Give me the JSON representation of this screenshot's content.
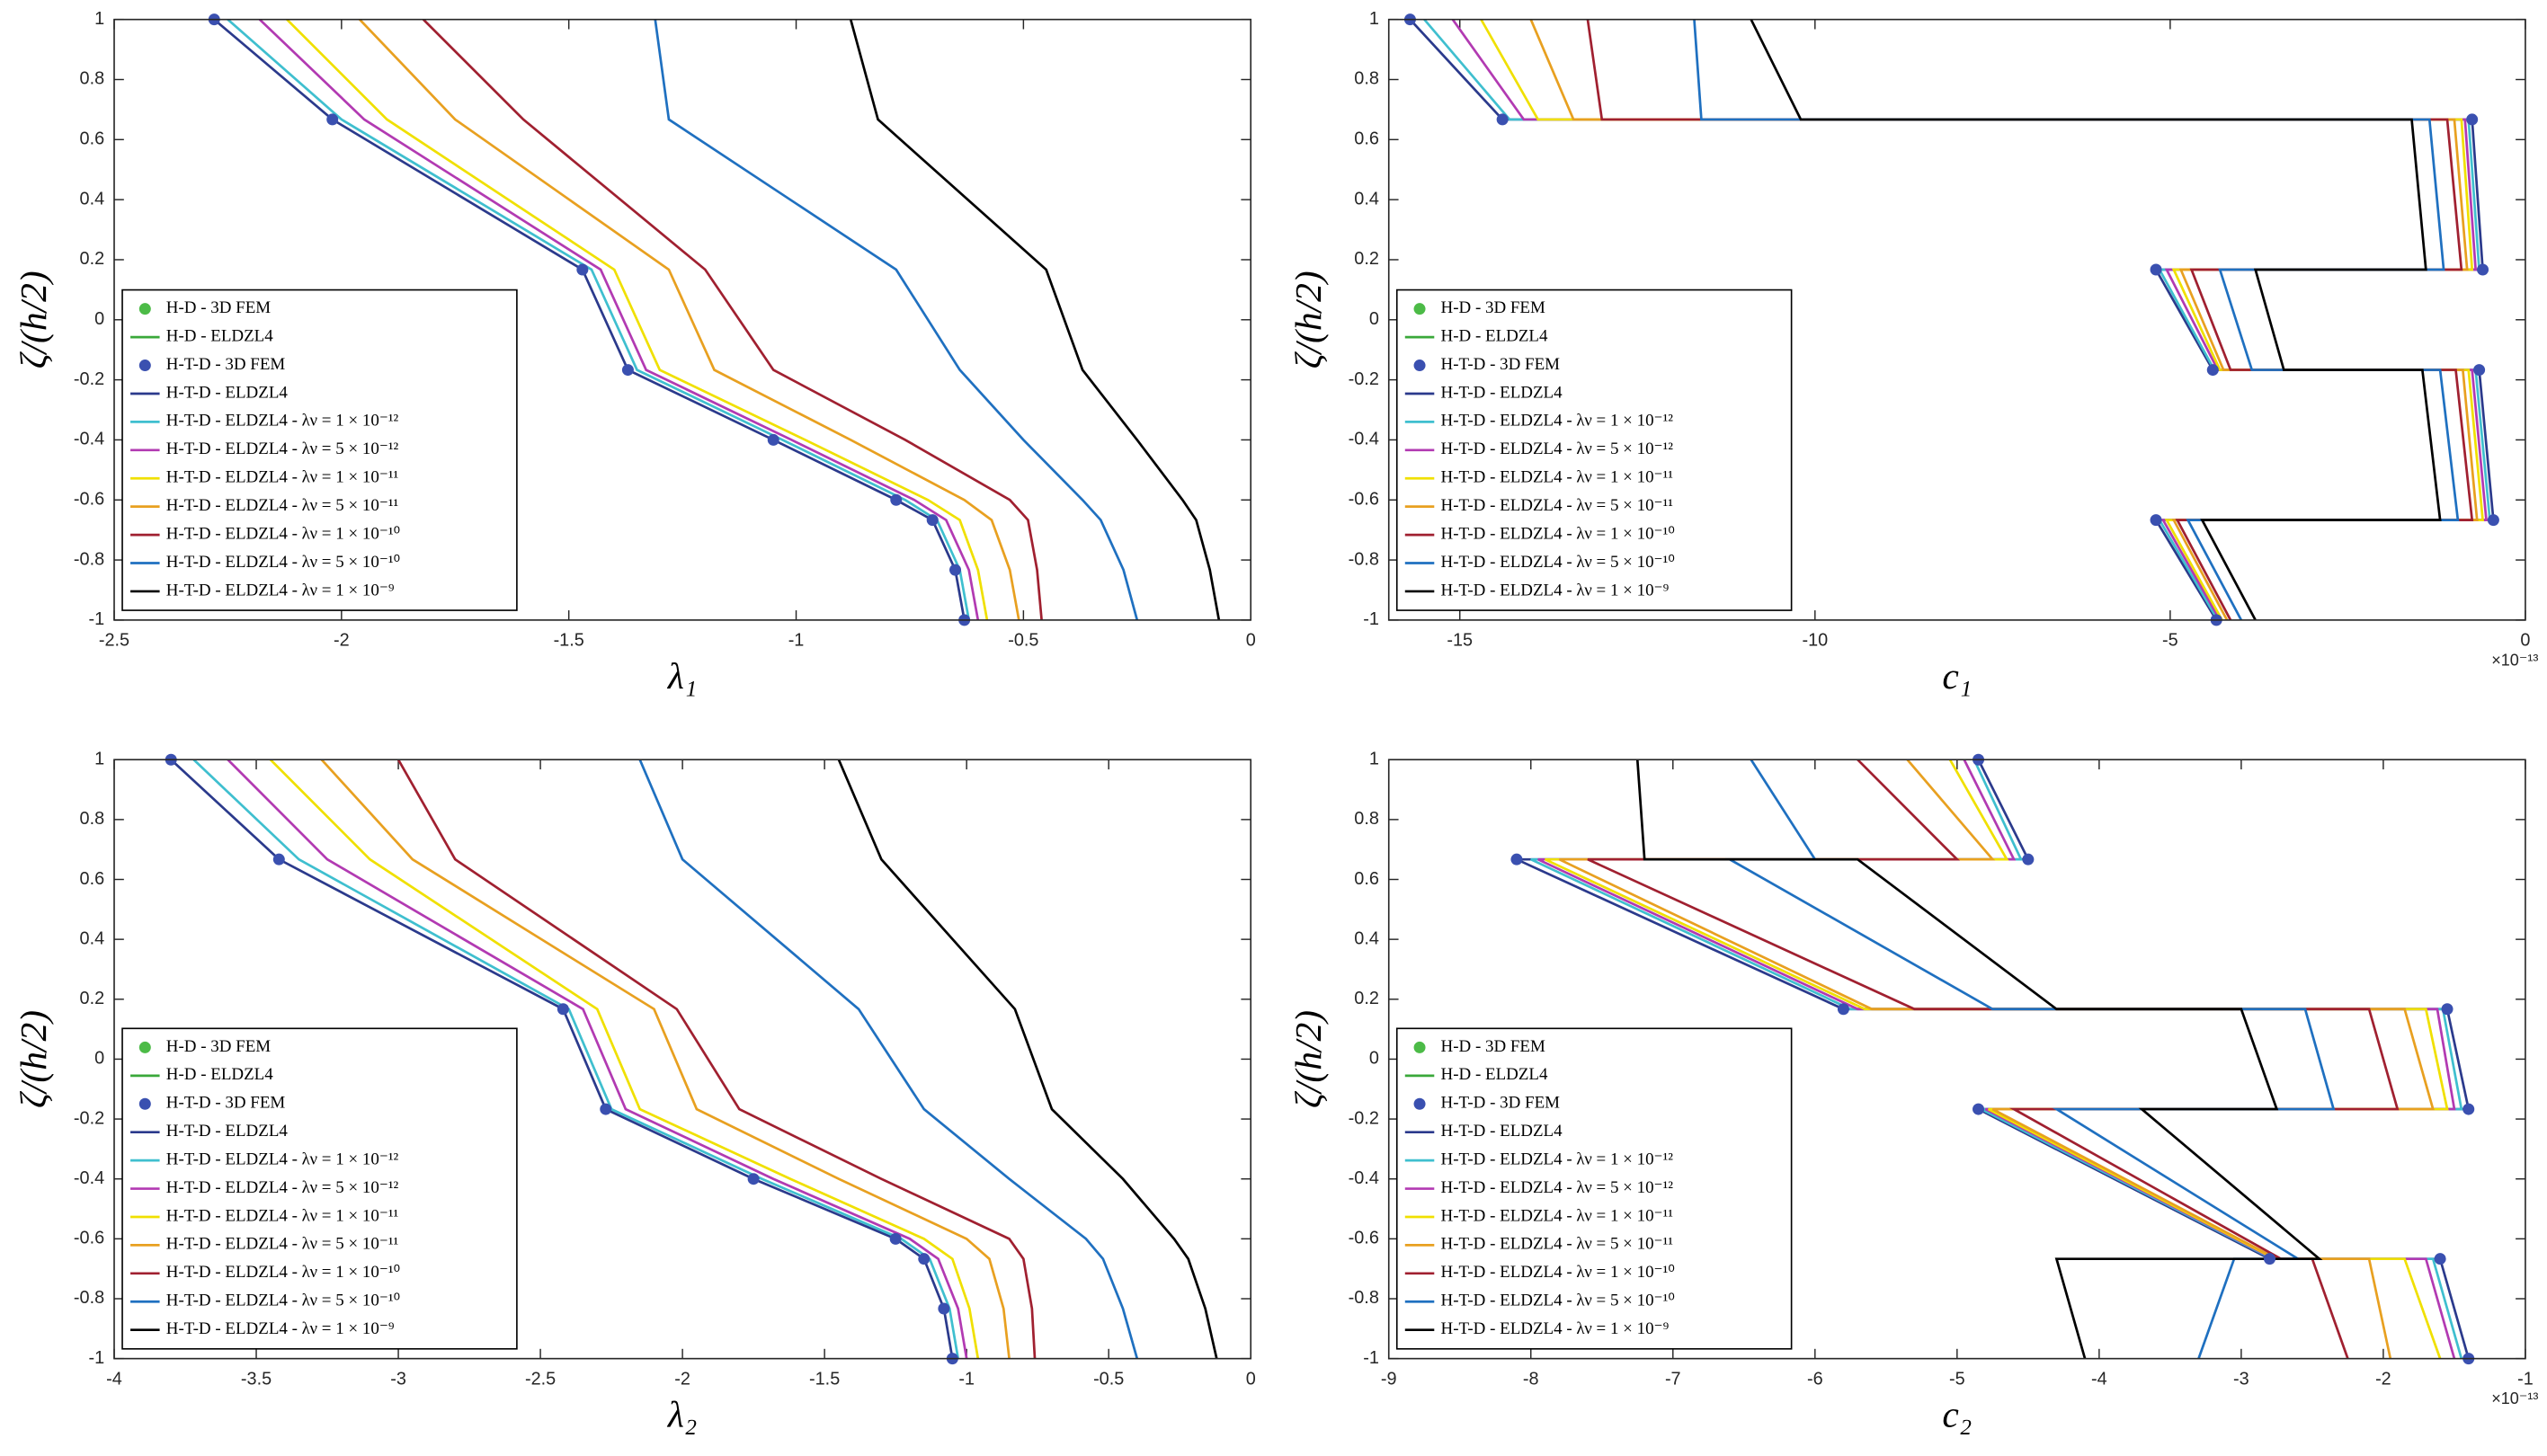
{
  "chart_data": [
    {
      "type": "line",
      "xlabel": "λ₁",
      "ylabel": "ζ/(h/2)",
      "xlim": [
        -2.5,
        0
      ],
      "ylim": [
        -1,
        1
      ],
      "xticks": [
        -2.5,
        -2,
        -1.5,
        -1,
        -0.5,
        0
      ],
      "yticks": [
        -1,
        -0.8,
        -0.6,
        -0.4,
        -0.2,
        0,
        0.2,
        0.4,
        0.6,
        0.8,
        1
      ],
      "legend": "lower left",
      "y": [
        1,
        0.667,
        0.167,
        -0.167,
        -0.4,
        -0.6,
        -0.667,
        -0.833,
        -1
      ],
      "series": [
        {
          "name": "H-D - 3D FEM",
          "color": "#4cbb47",
          "marker": "o"
        },
        {
          "name": "H-D - ELDZL4",
          "color": "#3aa83a"
        },
        {
          "name": "H-T-D - 3D FEM",
          "color": "#3a50b0",
          "marker": "o",
          "x": [
            -2.28,
            -2.02,
            -1.47,
            -1.37,
            -1.05,
            -0.78,
            -0.7,
            -0.65,
            -0.63
          ]
        },
        {
          "name": "H-T-D - ELDZL4",
          "color": "#2b3a8c",
          "x": [
            -2.28,
            -2.02,
            -1.47,
            -1.37,
            -1.05,
            -0.78,
            -0.7,
            -0.65,
            -0.63
          ]
        },
        {
          "name": "H-T-D - ELDZL4 - λν = 1 × 10⁻¹²",
          "color": "#3fbfcf",
          "x": [
            -2.25,
            -2,
            -1.45,
            -1.35,
            -1.03,
            -0.76,
            -0.69,
            -0.64,
            -0.62
          ]
        },
        {
          "name": "H-T-D - ELDZL4 - λν = 5 × 10⁻¹²",
          "color": "#b23ab2",
          "x": [
            -2.18,
            -1.95,
            -1.43,
            -1.33,
            -1.01,
            -0.74,
            -0.67,
            -0.62,
            -0.6
          ]
        },
        {
          "name": "H-T-D - ELDZL4 - λν = 1 × 10⁻¹¹",
          "color": "#f0e000",
          "x": [
            -2.12,
            -1.9,
            -1.4,
            -1.3,
            -0.98,
            -0.71,
            -0.64,
            -0.6,
            -0.58
          ]
        },
        {
          "name": "H-T-D - ELDZL4 - λν = 5 × 10⁻¹¹",
          "color": "#e8a020",
          "x": [
            -1.96,
            -1.75,
            -1.28,
            -1.18,
            -0.88,
            -0.63,
            -0.57,
            -0.53,
            -0.51
          ]
        },
        {
          "name": "H-T-D - ELDZL4 - λν = 1 × 10⁻¹⁰",
          "color": "#a02030",
          "x": [
            -1.82,
            -1.6,
            -1.2,
            -1.05,
            -0.76,
            -0.53,
            -0.49,
            -0.47,
            -0.46
          ]
        },
        {
          "name": "H-T-D - ELDZL4 - λν = 5 × 10⁻¹⁰",
          "color": "#1f70c0",
          "x": [
            -1.31,
            -1.28,
            -0.78,
            -0.64,
            -0.5,
            -0.37,
            -0.33,
            -0.28,
            -0.25
          ]
        },
        {
          "name": "H-T-D - ELDZL4 - λν = 1 × 10⁻⁹",
          "color": "#000000",
          "x": [
            -0.88,
            -0.82,
            -0.45,
            -0.37,
            -0.25,
            -0.15,
            -0.12,
            -0.09,
            -0.07
          ]
        }
      ]
    },
    {
      "type": "line",
      "xlabel": "c₁",
      "ylabel": "ζ/(h/2)",
      "xlim": [
        -16,
        0
      ],
      "ylim": [
        -1,
        1
      ],
      "xticks": [
        -15,
        -10,
        -5,
        0
      ],
      "yticks": [
        -1,
        -0.8,
        -0.6,
        -0.4,
        -0.2,
        0,
        0.2,
        0.4,
        0.6,
        0.8,
        1
      ],
      "legend": "lower left",
      "x_multiplier": "×10⁻¹³",
      "y": [
        1,
        0.667,
        0.667,
        0.167,
        0.167,
        -0.167,
        -0.167,
        -0.667,
        -0.667,
        -1
      ],
      "series": [
        {
          "name": "H-D - 3D FEM",
          "color": "#4cbb47",
          "marker": "o"
        },
        {
          "name": "H-D - ELDZL4",
          "color": "#3aa83a"
        },
        {
          "name": "H-T-D - 3D FEM",
          "color": "#3a50b0",
          "marker": "o",
          "x": [
            -15.7,
            -14.4,
            -0.75,
            -0.6,
            -5.2,
            -4.4,
            -0.65,
            -0.45,
            -5.2,
            -4.35
          ]
        },
        {
          "name": "H-T-D - ELDZL4",
          "color": "#2b3a8c",
          "x": [
            -15.7,
            -14.4,
            -0.75,
            -0.6,
            -5.2,
            -4.4,
            -0.65,
            -0.45,
            -5.2,
            -4.35
          ]
        },
        {
          "name": "H-T-D - ELDZL4 - λν = 1 × 10⁻¹²",
          "color": "#3fbfcf",
          "x": [
            -15.5,
            -14.3,
            -0.8,
            -0.65,
            -5.15,
            -4.38,
            -0.7,
            -0.5,
            -5.15,
            -4.33
          ]
        },
        {
          "name": "H-T-D - ELDZL4 - λν = 5 × 10⁻¹²",
          "color": "#b23ab2",
          "x": [
            -15.1,
            -14.1,
            -0.85,
            -0.7,
            -5.05,
            -4.33,
            -0.75,
            -0.55,
            -5.1,
            -4.3
          ]
        },
        {
          "name": "H-T-D - ELDZL4 - λν = 1 × 10⁻¹¹",
          "color": "#f0e000",
          "x": [
            -14.7,
            -13.9,
            -0.9,
            -0.75,
            -4.95,
            -4.3,
            -0.8,
            -0.6,
            -5.05,
            -4.27
          ]
        },
        {
          "name": "H-T-D - ELDZL4 - λν = 5 × 10⁻¹¹",
          "color": "#e8a020",
          "x": [
            -14,
            -13.4,
            -1,
            -0.82,
            -4.85,
            -4.25,
            -0.88,
            -0.68,
            -4.95,
            -4.2
          ]
        },
        {
          "name": "H-T-D - ELDZL4 - λν = 1 × 10⁻¹⁰",
          "color": "#a02030",
          "x": [
            -13.2,
            -13,
            -1.1,
            -0.9,
            -4.7,
            -4.15,
            -0.98,
            -0.75,
            -4.9,
            -4.15
          ]
        },
        {
          "name": "H-T-D - ELDZL4 - λν = 5 × 10⁻¹⁰",
          "color": "#1f70c0",
          "x": [
            -11.7,
            -11.6,
            -1.35,
            -1.15,
            -4.3,
            -3.85,
            -1.2,
            -0.95,
            -4.75,
            -4
          ]
        },
        {
          "name": "H-T-D - ELDZL4 - λν = 1 × 10⁻⁹",
          "color": "#000000",
          "x": [
            -10.9,
            -10.2,
            -1.6,
            -1.4,
            -3.8,
            -3.4,
            -1.45,
            -1.2,
            -4.55,
            -3.8
          ]
        }
      ]
    },
    {
      "type": "line",
      "xlabel": "λ₂",
      "ylabel": "ζ/(h/2)",
      "xlim": [
        -4,
        0
      ],
      "ylim": [
        -1,
        1
      ],
      "xticks": [
        -4,
        -3.5,
        -3,
        -2.5,
        -2,
        -1.5,
        -1,
        -0.5,
        0
      ],
      "yticks": [
        -1,
        -0.8,
        -0.6,
        -0.4,
        -0.2,
        0,
        0.2,
        0.4,
        0.6,
        0.8,
        1
      ],
      "legend": "lower left",
      "y": [
        1,
        0.667,
        0.167,
        -0.167,
        -0.4,
        -0.6,
        -0.667,
        -0.833,
        -1
      ],
      "series": [
        {
          "name": "H-D - 3D FEM",
          "color": "#4cbb47",
          "marker": "o"
        },
        {
          "name": "H-D - ELDZL4",
          "color": "#3aa83a"
        },
        {
          "name": "H-T-D - 3D FEM",
          "color": "#3a50b0",
          "marker": "o",
          "x": [
            -3.8,
            -3.42,
            -2.42,
            -2.27,
            -1.75,
            -1.25,
            -1.15,
            -1.08,
            -1.05
          ]
        },
        {
          "name": "H-T-D - ELDZL4",
          "color": "#2b3a8c",
          "x": [
            -3.8,
            -3.42,
            -2.42,
            -2.27,
            -1.75,
            -1.25,
            -1.15,
            -1.08,
            -1.05
          ]
        },
        {
          "name": "H-T-D - ELDZL4 - λν = 1 × 10⁻¹²",
          "color": "#3fbfcf",
          "x": [
            -3.72,
            -3.35,
            -2.4,
            -2.25,
            -1.72,
            -1.23,
            -1.13,
            -1.06,
            -1.03
          ]
        },
        {
          "name": "H-T-D - ELDZL4 - λν = 5 × 10⁻¹²",
          "color": "#b23ab2",
          "x": [
            -3.6,
            -3.25,
            -2.35,
            -2.2,
            -1.68,
            -1.2,
            -1.1,
            -1.03,
            -1
          ]
        },
        {
          "name": "H-T-D - ELDZL4 - λν = 1 × 10⁻¹¹",
          "color": "#f0e000",
          "x": [
            -3.45,
            -3.1,
            -2.3,
            -2.15,
            -1.62,
            -1.15,
            -1.05,
            -0.99,
            -0.96
          ]
        },
        {
          "name": "H-T-D - ELDZL4 - λν = 5 × 10⁻¹¹",
          "color": "#e8a020",
          "x": [
            -3.27,
            -2.95,
            -2.1,
            -1.95,
            -1.45,
            -1,
            -0.92,
            -0.87,
            -0.85
          ]
        },
        {
          "name": "H-T-D - ELDZL4 - λν = 1 × 10⁻¹⁰",
          "color": "#a02030",
          "x": [
            -3,
            -2.8,
            -2.02,
            -1.8,
            -1.3,
            -0.85,
            -0.8,
            -0.77,
            -0.76
          ]
        },
        {
          "name": "H-T-D - ELDZL4 - λν = 5 × 10⁻¹⁰",
          "color": "#1f70c0",
          "x": [
            -2.15,
            -2,
            -1.38,
            -1.15,
            -0.85,
            -0.58,
            -0.52,
            -0.45,
            -0.4
          ]
        },
        {
          "name": "H-T-D - ELDZL4 - λν = 1 × 10⁻⁹",
          "color": "#000000",
          "x": [
            -1.45,
            -1.3,
            -0.83,
            -0.7,
            -0.45,
            -0.27,
            -0.22,
            -0.16,
            -0.12
          ]
        }
      ]
    },
    {
      "type": "line",
      "xlabel": "c₂",
      "ylabel": "ζ/(h/2)",
      "xlim": [
        -9,
        -1
      ],
      "ylim": [
        -1,
        1
      ],
      "xticks": [
        -9,
        -8,
        -7,
        -6,
        -5,
        -4,
        -3,
        -2,
        -1
      ],
      "yticks": [
        -1,
        -0.8,
        -0.6,
        -0.4,
        -0.2,
        0,
        0.2,
        0.4,
        0.6,
        0.8,
        1
      ],
      "legend": "lower left",
      "x_multiplier": "×10⁻¹³",
      "y": [
        1,
        0.667,
        0.667,
        0.167,
        0.167,
        -0.167,
        -0.167,
        -0.667,
        -0.667,
        -1
      ],
      "series": [
        {
          "name": "H-D - 3D FEM",
          "color": "#4cbb47",
          "marker": "o"
        },
        {
          "name": "H-D - ELDZL4",
          "color": "#3aa83a"
        },
        {
          "name": "H-T-D - 3D FEM",
          "color": "#3a50b0",
          "marker": "o",
          "x": [
            -4.85,
            -4.5,
            -8.1,
            -5.8,
            -1.55,
            -1.4,
            -4.85,
            -2.8,
            -1.6,
            -1.4
          ]
        },
        {
          "name": "H-T-D - ELDZL4",
          "color": "#2b3a8c",
          "x": [
            -4.85,
            -4.5,
            -8.1,
            -5.8,
            -1.55,
            -1.4,
            -4.85,
            -2.8,
            -1.6,
            -1.4
          ]
        },
        {
          "name": "H-T-D - ELDZL4 - λν = 1 × 10⁻¹²",
          "color": "#3fbfcf",
          "x": [
            -4.88,
            -4.55,
            -8,
            -5.75,
            -1.58,
            -1.45,
            -4.83,
            -2.78,
            -1.65,
            -1.45
          ]
        },
        {
          "name": "H-T-D - ELDZL4 - λν = 5 × 10⁻¹²",
          "color": "#b23ab2",
          "x": [
            -4.95,
            -4.6,
            -7.95,
            -5.7,
            -1.62,
            -1.5,
            -4.8,
            -2.77,
            -1.7,
            -1.5
          ]
        },
        {
          "name": "H-T-D - ELDZL4 - λν = 1 × 10⁻¹¹",
          "color": "#f0e000",
          "x": [
            -5.05,
            -4.65,
            -7.9,
            -5.65,
            -1.7,
            -1.55,
            -4.78,
            -2.76,
            -1.85,
            -1.6
          ]
        },
        {
          "name": "H-T-D - ELDZL4 - λν = 5 × 10⁻¹¹",
          "color": "#e8a020",
          "x": [
            -5.35,
            -4.75,
            -7.8,
            -5.6,
            -1.85,
            -1.65,
            -4.75,
            -2.75,
            -2.1,
            -1.95
          ]
        },
        {
          "name": "H-T-D - ELDZL4 - λν = 1 × 10⁻¹⁰",
          "color": "#a02030",
          "x": [
            -5.7,
            -5,
            -7.6,
            -5.3,
            -2.1,
            -1.9,
            -4.6,
            -2.72,
            -2.5,
            -2.25
          ]
        },
        {
          "name": "H-T-D - ELDZL4 - λν = 5 × 10⁻¹⁰",
          "color": "#1f70c0",
          "x": [
            -6.45,
            -6,
            -6.6,
            -4.75,
            -2.55,
            -2.35,
            -4.3,
            -2.6,
            -3.05,
            -3.3
          ]
        },
        {
          "name": "H-T-D - ELDZL4 - λν = 1 × 10⁻⁹",
          "color": "#000000",
          "x": [
            -7.25,
            -7.2,
            -5.7,
            -4.3,
            -3,
            -2.75,
            -3.7,
            -2.45,
            -4.3,
            -4.1
          ]
        }
      ]
    }
  ]
}
